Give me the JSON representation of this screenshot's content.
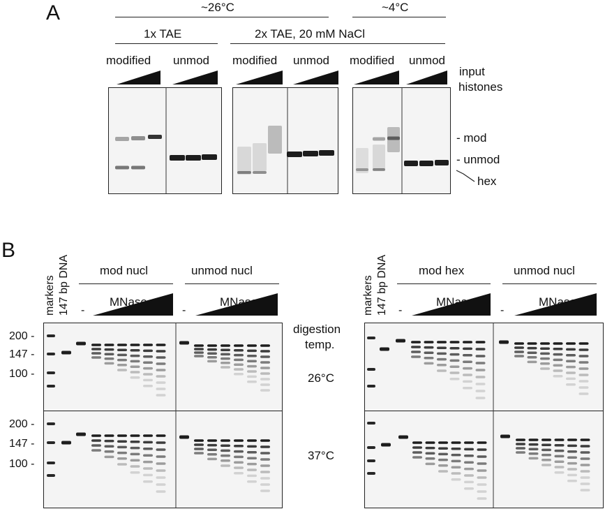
{
  "panel_a": {
    "letter": "A",
    "temp_warm": "~26°C",
    "temp_cold": "~4°C",
    "buffer_1": "1x TAE",
    "buffer_2": "2x TAE, 20 mM NaCl",
    "lane_modified": "modified",
    "lane_unmod": "unmod",
    "input_label_1": "input",
    "input_label_2": "histones",
    "band_mod": "- mod",
    "band_unmod": "- unmod",
    "band_hex": "hex"
  },
  "panel_b": {
    "letter": "B",
    "markers": "markers",
    "dna_147": "147 bp DNA",
    "left_group_1": "mod nucl",
    "left_group_2": "unmod nucl",
    "right_group_1": "mod hex",
    "right_group_2": "unmod nucl",
    "minus": "-",
    "mnase": "MNase",
    "digestion_1": "digestion",
    "digestion_2": "temp.",
    "temp_26": "26°C",
    "temp_37": "37°C",
    "ladder": [
      "200 -",
      "147 -",
      "100 -"
    ]
  },
  "colors": {
    "band": "#111111",
    "gel_bg": "#f4f4f4",
    "rule": "#222222"
  }
}
